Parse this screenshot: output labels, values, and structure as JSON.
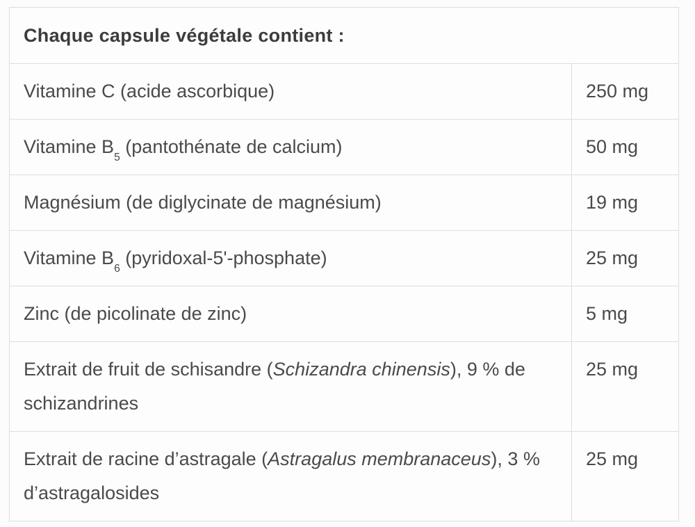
{
  "table": {
    "header": "Chaque capsule végétale contient :",
    "rows": [
      {
        "name_segments": [
          {
            "text": "Vitamine C (acide ascorbique)",
            "style": "normal"
          }
        ],
        "amount": "250 mg"
      },
      {
        "name_segments": [
          {
            "text": "Vitamine B",
            "style": "normal"
          },
          {
            "text": "5",
            "style": "subscript"
          },
          {
            "text": " (pantothénate de calcium)",
            "style": "normal"
          }
        ],
        "amount": "50 mg"
      },
      {
        "name_segments": [
          {
            "text": "Magnésium (de diglycinate de magnésium)",
            "style": "normal"
          }
        ],
        "amount": "19 mg"
      },
      {
        "name_segments": [
          {
            "text": "Vitamine B",
            "style": "normal"
          },
          {
            "text": "6",
            "style": "subscript"
          },
          {
            "text": " (pyridoxal-5'-phosphate)",
            "style": "normal"
          }
        ],
        "amount": "25 mg"
      },
      {
        "name_segments": [
          {
            "text": "Zinc (de picolinate de zinc)",
            "style": "normal"
          }
        ],
        "amount": "5 mg"
      },
      {
        "name_segments": [
          {
            "text": "Extrait de fruit de schisandre (",
            "style": "normal"
          },
          {
            "text": "Schizandra chinensis",
            "style": "italic"
          },
          {
            "text": "), 9 % de schizandrines",
            "style": "normal"
          }
        ],
        "amount": "25 mg"
      },
      {
        "name_segments": [
          {
            "text": "Extrait de racine d’astragale (",
            "style": "normal"
          },
          {
            "text": "Astragalus membranaceus",
            "style": "italic"
          },
          {
            "text": "), 3 % d’astragalosides",
            "style": "normal"
          }
        ],
        "amount": "25 mg"
      }
    ]
  }
}
